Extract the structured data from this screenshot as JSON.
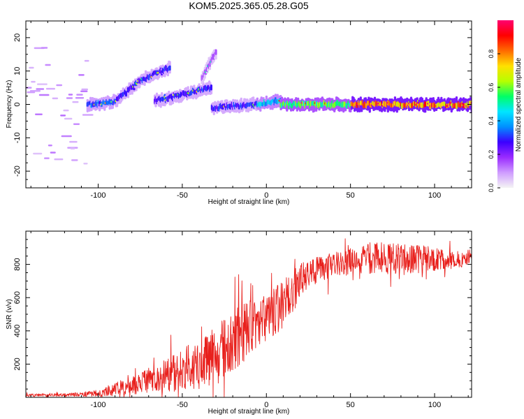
{
  "title": "KOM5.2025.365.05.28.G05",
  "colors": {
    "snr_line": "#e8201c",
    "axis": "#000000",
    "colorbar": [
      "#f4f4f4",
      "#cf9cff",
      "#9a2bff",
      "#3b00ff",
      "#0090ff",
      "#00e6ff",
      "#00ff66",
      "#b6ff00",
      "#ffe000",
      "#ff6a00",
      "#ff0000",
      "#ff0070"
    ]
  },
  "chart_data": [
    {
      "type": "heatmap",
      "name": "spectrogram",
      "title": "KOM5.2025.365.05.28.G05",
      "xlabel": "Height of straight line (km)",
      "ylabel": "Frequency (Hz)",
      "xlim": [
        -143,
        122
      ],
      "ylim": [
        -25,
        25
      ],
      "xticks": [
        -100,
        -50,
        0,
        50,
        100
      ],
      "yticks": [
        -20,
        -10,
        0,
        10,
        20
      ],
      "colorbar_label": "Normalized spectral amplitude",
      "colorbar_range": [
        0,
        1
      ],
      "colorbar_ticks": [
        "0.0",
        "0.2",
        "0.4",
        "0.6",
        "0.8"
      ],
      "tracks": [
        {
          "x0": -143,
          "x1": -108,
          "f0": -6,
          "f1": -6,
          "amp": 0.08,
          "spread": 16,
          "note": "scattered noise"
        },
        {
          "x0": -107,
          "x1": -90,
          "f0": 0,
          "f1": 1,
          "amp": 0.35
        },
        {
          "x0": -90,
          "x1": -76,
          "f0": 1,
          "f1": 7,
          "amp": 0.3
        },
        {
          "x0": -76,
          "x1": -58,
          "f0": 7,
          "f1": 11,
          "amp": 0.3
        },
        {
          "x0": -67,
          "x1": -33,
          "f0": 1,
          "f1": 5,
          "amp": 0.3
        },
        {
          "x0": -39,
          "x1": -30,
          "f0": 8,
          "f1": 16,
          "amp": 0.15
        },
        {
          "x0": -33,
          "x1": -6,
          "f0": -1,
          "f1": 0,
          "amp": 0.3
        },
        {
          "x0": -6,
          "x1": 8,
          "f0": 0,
          "f1": 1,
          "amp": 0.45
        },
        {
          "x0": 8,
          "x1": 50,
          "f0": 0,
          "f1": 0,
          "amp": 0.6
        },
        {
          "x0": 50,
          "x1": 122,
          "f0": 0,
          "f1": 0,
          "amp": 0.85
        }
      ]
    },
    {
      "type": "line",
      "name": "snr",
      "xlabel": "Height of straight line (km)",
      "ylabel": "SNR (v/v)",
      "xlim": [
        -143,
        122
      ],
      "ylim": [
        0,
        1000
      ],
      "xticks": [
        -100,
        -50,
        0,
        50,
        100
      ],
      "yticks": [
        200,
        400,
        600,
        800
      ],
      "envelope": {
        "x": [
          -143,
          -110,
          -100,
          -90,
          -80,
          -70,
          -60,
          -50,
          -40,
          -30,
          -20,
          -10,
          0,
          10,
          20,
          25,
          30,
          40,
          50,
          60,
          70,
          80,
          90,
          100,
          110,
          122
        ],
        "mean": [
          12,
          18,
          25,
          50,
          70,
          100,
          130,
          160,
          210,
          250,
          330,
          410,
          480,
          560,
          690,
          740,
          770,
          800,
          820,
          840,
          835,
          835,
          830,
          830,
          830,
          825
        ],
        "noise": [
          5,
          8,
          12,
          25,
          35,
          50,
          65,
          80,
          100,
          110,
          120,
          110,
          90,
          90,
          70,
          60,
          50,
          50,
          55,
          60,
          60,
          55,
          55,
          45,
          35,
          25
        ]
      }
    }
  ]
}
